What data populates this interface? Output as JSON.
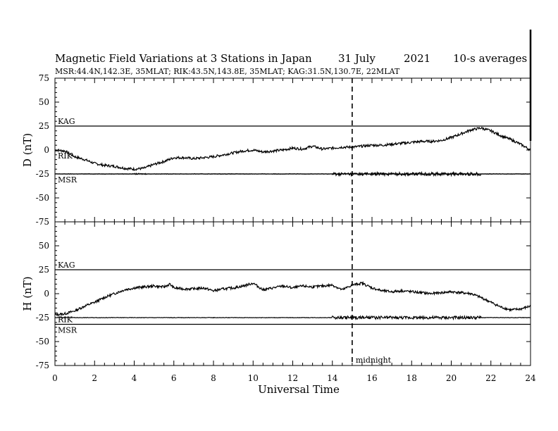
{
  "title": {
    "main": "Magnetic Field Variations at 3 Stations in Japan",
    "date": "31 July",
    "year": "2021",
    "averaging": "10-s averages",
    "stations": "MSR:44.4N,142.3E, 35MLAT;  RIK:43.5N,143.8E, 35MLAT;  KAG:31.5N,130.7E, 22MLAT"
  },
  "chart_data": [
    {
      "type": "line",
      "panel": "top",
      "ylabel": "D (nT)",
      "xlabel": "",
      "xlim": [
        0,
        24
      ],
      "ylim": [
        -75,
        75
      ],
      "yticks": [
        75,
        50,
        25,
        0,
        -25,
        -50,
        -75
      ],
      "station_baselines": [
        {
          "name": "KAG",
          "y": 25
        },
        {
          "name": "RIK",
          "y": -6
        },
        {
          "name": "MSR",
          "y": -25
        }
      ],
      "series": [
        {
          "name": "RIK",
          "x": [
            0,
            0.5,
            1,
            1.5,
            2,
            2.5,
            3,
            3.5,
            4,
            4.5,
            5,
            5.5,
            6,
            6.5,
            7,
            7.5,
            8,
            8.5,
            9,
            9.5,
            10,
            10.5,
            11,
            11.5,
            12,
            12.5,
            13,
            13.5,
            14,
            14.5,
            15,
            15.5,
            16,
            16.5,
            17,
            17.5,
            18,
            18.5,
            19,
            19.5,
            20,
            20.5,
            21,
            21.5,
            22,
            22.5,
            23,
            23.5,
            24
          ],
          "values": [
            0,
            -1,
            -7,
            -10,
            -14,
            -16,
            -17,
            -19,
            -20,
            -19,
            -15,
            -12,
            -8,
            -8,
            -9,
            -8,
            -7,
            -5,
            -3,
            -1,
            0,
            -2,
            -1,
            0,
            2,
            1,
            4,
            1,
            2,
            3,
            3,
            4,
            5,
            5,
            6,
            7,
            8,
            9,
            9,
            10,
            13,
            17,
            21,
            23,
            20,
            15,
            11,
            6,
            0
          ]
        },
        {
          "name": "MSR",
          "x": [
            0,
            4,
            8,
            12,
            14,
            15,
            16,
            18,
            20,
            21.5,
            24
          ],
          "values": [
            -25,
            -25,
            -25,
            -25,
            -25,
            -25,
            -25,
            -25,
            -25,
            -25,
            -25
          ]
        }
      ]
    },
    {
      "type": "line",
      "panel": "bottom",
      "ylabel": "H (nT)",
      "xlabel": "Universal Time",
      "xlim": [
        0,
        24
      ],
      "ylim": [
        -75,
        75
      ],
      "yticks": [
        75,
        50,
        25,
        0,
        -25,
        -50,
        -75
      ],
      "xticks": [
        0,
        2,
        4,
        6,
        8,
        10,
        12,
        14,
        16,
        18,
        20,
        22,
        24
      ],
      "station_baselines": [
        {
          "name": "KAG",
          "y": 25
        },
        {
          "name": "RIK",
          "y": -27
        },
        {
          "name": "MSR",
          "y": -32
        }
      ],
      "series": [
        {
          "name": "RIK",
          "x": [
            0,
            0.5,
            1,
            1.5,
            2,
            2.5,
            3,
            3.5,
            4,
            4.5,
            5,
            5.5,
            5.8,
            6,
            6.5,
            7,
            7.5,
            8,
            8.5,
            9,
            9.5,
            10,
            10.5,
            11,
            11.5,
            12,
            12.5,
            13,
            13.5,
            14,
            14.5,
            15,
            15.5,
            16,
            16.5,
            17,
            17.5,
            18,
            18.5,
            19,
            19.5,
            20,
            20.5,
            21,
            21.5,
            22,
            22.5,
            23,
            23.5,
            24
          ],
          "values": [
            -22,
            -21,
            -18,
            -13,
            -9,
            -4,
            0,
            4,
            6,
            7,
            8,
            7,
            10,
            6,
            5,
            5,
            6,
            3,
            5,
            6,
            8,
            11,
            4,
            6,
            8,
            6,
            8,
            7,
            8,
            9,
            4,
            9,
            11,
            6,
            3,
            2,
            3,
            2,
            1,
            0,
            1,
            2,
            1,
            0,
            -4,
            -9,
            -14,
            -17,
            -16,
            -13
          ]
        },
        {
          "name": "MSR",
          "x": [
            0,
            4,
            8,
            12,
            14,
            15,
            16,
            18,
            20,
            21.5,
            24
          ],
          "values": [
            -25,
            -25,
            -25,
            -25,
            -25,
            -25,
            -25,
            -25,
            -25,
            -25,
            -25
          ]
        }
      ]
    }
  ],
  "annotation": {
    "midnight_label": "midnight",
    "midnight_ut": 15
  }
}
